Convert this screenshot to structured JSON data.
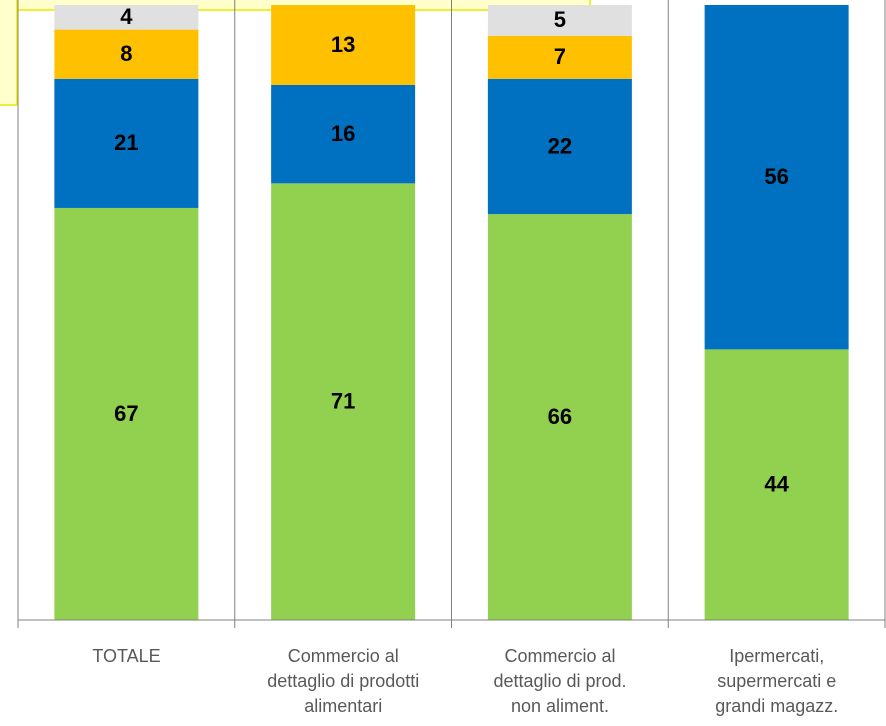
{
  "chart_data": {
    "type": "stacked_bar",
    "categories": [
      "TOTALE",
      "Commercio al\ndettaglio di prodotti\nalimentari",
      "Commercio al\ndettaglio di prod.\nnon aliment.",
      "Ipermercati,\nsupermercati e\ngrandi magazz."
    ],
    "series": [
      {
        "color": "#92d050",
        "values": [
          67,
          71,
          66,
          44
        ]
      },
      {
        "color": "#0070c0",
        "values": [
          21,
          16,
          22,
          56
        ]
      },
      {
        "color": "#ffc000",
        "values": [
          8,
          13,
          7,
          null
        ]
      },
      {
        "color": "#e0e0e0",
        "values": [
          4,
          null,
          5,
          null
        ]
      }
    ],
    "ylim": [
      0,
      100
    ]
  }
}
